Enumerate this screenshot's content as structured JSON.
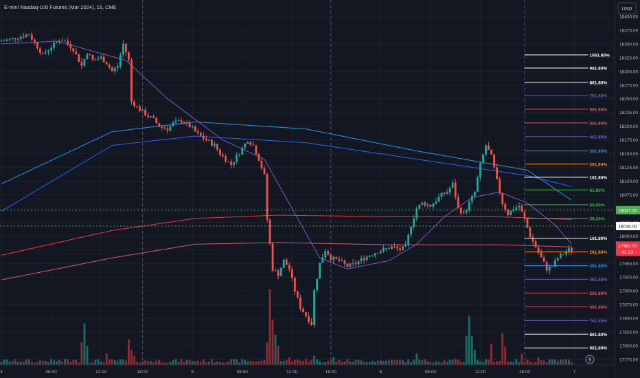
{
  "header": {
    "title": "E-mini Nasdaq-100 Futures (Mar 2024), 15, CME",
    "currency_button": "USD",
    "bolt_icon": "lightning-icon"
  },
  "chart_data": {
    "type": "candlestick",
    "title": "E-mini Nasdaq-100 Futures (Mar 2024), 15, CME",
    "yrange": [
      17765,
      18430
    ],
    "y_ticks": [
      18400,
      18375,
      18350,
      18325,
      18300,
      18275,
      18250,
      18225,
      18200,
      18175,
      18150,
      18125,
      18100,
      18075,
      18050,
      18025,
      18000,
      17975,
      17950,
      17925,
      17900,
      17875,
      17850,
      17825,
      17800,
      17775
    ],
    "y_tick_labels": [
      "18400.00",
      "18375.00",
      "18350.00",
      "18325.00",
      "18300.00",
      "18275.00",
      "18250.00",
      "18225.00",
      "18200.00",
      "18175.00",
      "18150.00",
      "18125.00",
      "18100.00",
      "18075.00",
      "18050.00",
      "18025.00",
      "18000.00",
      "17975.00",
      "17950.00",
      "17925.00",
      "17900.00",
      "17875.00",
      "17850.00",
      "17825.00",
      "17800.00",
      "17775.00"
    ],
    "xrange": [
      0,
      222
    ],
    "x_ticks": [
      {
        "x": 0,
        "label": "4"
      },
      {
        "x": 18,
        "label": "06:00"
      },
      {
        "x": 36,
        "label": "12:00"
      },
      {
        "x": 51,
        "label": "18:00"
      },
      {
        "x": 69,
        "label": "5"
      },
      {
        "x": 87,
        "label": "06:00"
      },
      {
        "x": 105,
        "label": "12:00"
      },
      {
        "x": 119,
        "label": "18:00"
      },
      {
        "x": 137,
        "label": "6"
      },
      {
        "x": 155,
        "label": "06:00"
      },
      {
        "x": 173,
        "label": "12:00"
      },
      {
        "x": 189,
        "label": "18:00"
      },
      {
        "x": 207,
        "label": "7"
      }
    ],
    "session_breaks": [
      51,
      119,
      189
    ],
    "price_anchors": [
      [
        0,
        18355
      ],
      [
        3,
        18357
      ],
      [
        7,
        18362
      ],
      [
        11,
        18368
      ],
      [
        13,
        18352
      ],
      [
        16,
        18330
      ],
      [
        19,
        18345
      ],
      [
        22,
        18358
      ],
      [
        24,
        18355
      ],
      [
        27,
        18340
      ],
      [
        30,
        18310
      ],
      [
        32,
        18335
      ],
      [
        34,
        18320
      ],
      [
        37,
        18325
      ],
      [
        39,
        18315
      ],
      [
        41,
        18300
      ],
      [
        43,
        18310
      ],
      [
        45,
        18350
      ],
      [
        47,
        18320
      ],
      [
        48,
        18245
      ],
      [
        50,
        18235
      ],
      [
        53,
        18222
      ],
      [
        56,
        18212
      ],
      [
        58,
        18200
      ],
      [
        61,
        18195
      ],
      [
        63,
        18205
      ],
      [
        66,
        18210
      ],
      [
        69,
        18200
      ],
      [
        72,
        18185
      ],
      [
        75,
        18175
      ],
      [
        78,
        18165
      ],
      [
        80,
        18150
      ],
      [
        82,
        18140
      ],
      [
        84,
        18130
      ],
      [
        86,
        18145
      ],
      [
        88,
        18160
      ],
      [
        90,
        18175
      ],
      [
        92,
        18165
      ],
      [
        94,
        18140
      ],
      [
        96,
        18110
      ],
      [
        97,
        18030
      ],
      [
        99,
        17940
      ],
      [
        101,
        17930
      ],
      [
        103,
        17955
      ],
      [
        105,
        17940
      ],
      [
        107,
        17900
      ],
      [
        109,
        17870
      ],
      [
        111,
        17855
      ],
      [
        113,
        17840
      ],
      [
        114,
        17900
      ],
      [
        116,
        17950
      ],
      [
        118,
        17975
      ],
      [
        120,
        17960
      ],
      [
        123,
        17955
      ],
      [
        126,
        17945
      ],
      [
        129,
        17950
      ],
      [
        132,
        17960
      ],
      [
        134,
        17965
      ],
      [
        136,
        17970
      ],
      [
        139,
        17975
      ],
      [
        142,
        17980
      ],
      [
        145,
        17975
      ],
      [
        147,
        17980
      ],
      [
        149,
        18020
      ],
      [
        151,
        18050
      ],
      [
        153,
        18060
      ],
      [
        156,
        18055
      ],
      [
        158,
        18065
      ],
      [
        160,
        18075
      ],
      [
        162,
        18080
      ],
      [
        164,
        18095
      ],
      [
        166,
        18050
      ],
      [
        168,
        18040
      ],
      [
        170,
        18060
      ],
      [
        172,
        18080
      ],
      [
        174,
        18130
      ],
      [
        176,
        18165
      ],
      [
        178,
        18145
      ],
      [
        180,
        18100
      ],
      [
        182,
        18060
      ],
      [
        184,
        18040
      ],
      [
        186,
        18050
      ],
      [
        188,
        18055
      ],
      [
        190,
        18030
      ],
      [
        192,
        18000
      ],
      [
        194,
        17980
      ],
      [
        196,
        17960
      ],
      [
        198,
        17940
      ],
      [
        200,
        17945
      ],
      [
        202,
        17960
      ],
      [
        204,
        17968
      ],
      [
        206,
        17975
      ]
    ],
    "last_bar_index": 206,
    "volume_spikes": [
      [
        0,
        4
      ],
      [
        12,
        3
      ],
      [
        24,
        8
      ],
      [
        29,
        30
      ],
      [
        30,
        55
      ],
      [
        31,
        25
      ],
      [
        38,
        15
      ],
      [
        46,
        34
      ],
      [
        47,
        20
      ],
      [
        48,
        12
      ],
      [
        52,
        6
      ],
      [
        70,
        5
      ],
      [
        96,
        30
      ],
      [
        97,
        100
      ],
      [
        98,
        60
      ],
      [
        99,
        40
      ],
      [
        100,
        25
      ],
      [
        104,
        10
      ],
      [
        110,
        8
      ],
      [
        113,
        12
      ],
      [
        115,
        5
      ],
      [
        120,
        10
      ],
      [
        140,
        6
      ],
      [
        150,
        15
      ],
      [
        168,
        38
      ],
      [
        169,
        65
      ],
      [
        170,
        38
      ],
      [
        171,
        20
      ],
      [
        177,
        28
      ],
      [
        181,
        42
      ],
      [
        182,
        24
      ],
      [
        188,
        15
      ],
      [
        194,
        10
      ],
      [
        206,
        4
      ]
    ],
    "volume_max": 100,
    "moving_averages": [
      {
        "color": "#2962ff",
        "anchors": [
          [
            0,
            18045
          ],
          [
            40,
            18165
          ],
          [
            70,
            18182
          ],
          [
            110,
            18170
          ],
          [
            150,
            18140
          ],
          [
            190,
            18110
          ],
          [
            206,
            18090
          ]
        ]
      },
      {
        "color": "#2196f3",
        "anchors": [
          [
            0,
            18095
          ],
          [
            40,
            18190
          ],
          [
            70,
            18208
          ],
          [
            110,
            18195
          ],
          [
            150,
            18155
          ],
          [
            190,
            18120
          ],
          [
            206,
            18065
          ]
        ]
      },
      {
        "color": "#f23645",
        "anchors": [
          [
            0,
            17965
          ],
          [
            40,
            18010
          ],
          [
            70,
            18032
          ],
          [
            100,
            18038
          ],
          [
            140,
            18035
          ],
          [
            180,
            18035
          ],
          [
            206,
            18030
          ]
        ]
      },
      {
        "color": "#e05660",
        "anchors": [
          [
            0,
            17920
          ],
          [
            40,
            17960
          ],
          [
            70,
            17985
          ],
          [
            100,
            17988
          ],
          [
            140,
            17984
          ],
          [
            180,
            17984
          ],
          [
            206,
            17980
          ]
        ]
      },
      {
        "color": "#7e57c2",
        "anchors": [
          [
            0,
            18350
          ],
          [
            20,
            18355
          ],
          [
            45,
            18320
          ],
          [
            60,
            18250
          ],
          [
            80,
            18175
          ],
          [
            95,
            18140
          ],
          [
            105,
            18050
          ],
          [
            115,
            17960
          ],
          [
            125,
            17940
          ],
          [
            140,
            17955
          ],
          [
            150,
            17985
          ],
          [
            160,
            18035
          ],
          [
            170,
            18070
          ],
          [
            180,
            18080
          ],
          [
            190,
            18060
          ],
          [
            200,
            18020
          ],
          [
            206,
            17985
          ]
        ]
      }
    ],
    "fib_levels": [
      {
        "label": "1061.80%",
        "price": 18330,
        "color": "#ffffff"
      },
      {
        "label": "961.80%",
        "price": 18306,
        "color": "#ffffff"
      },
      {
        "label": "861.80%",
        "price": 18280,
        "color": "#ffffff"
      },
      {
        "label": "761.80%",
        "price": 18256,
        "color": "#5b5fc7"
      },
      {
        "label": "661.80%",
        "price": 18231,
        "color": "#e05660"
      },
      {
        "label": "561.80%",
        "price": 18206,
        "color": "#e05660"
      },
      {
        "label": "461.80%",
        "price": 18181,
        "color": "#7e57c2"
      },
      {
        "label": "361.80%",
        "price": 18155,
        "color": "#2196f3"
      },
      {
        "label": "261.80%",
        "price": 18131,
        "color": "#ff9800"
      },
      {
        "label": "161.80%",
        "price": 18107,
        "color": "#ffffff"
      },
      {
        "label": "61.80%",
        "price": 18084,
        "color": "#4caf50"
      },
      {
        "label": "50.00%",
        "price": 18057,
        "color": "#4caf50"
      },
      {
        "label": "38.20%",
        "price": 18032,
        "color": "#4caf50"
      },
      {
        "label": "161.80%",
        "price": 17996,
        "color": "#ffffff"
      },
      {
        "label": "261.80%",
        "price": 17971,
        "color": "#ff9800"
      },
      {
        "label": "361.80%",
        "price": 17946,
        "color": "#2196f3"
      },
      {
        "label": "461.80%",
        "price": 17921,
        "color": "#7e57c2"
      },
      {
        "label": "561.80%",
        "price": 17896,
        "color": "#e05660"
      },
      {
        "label": "661.80%",
        "price": 17871,
        "color": "#e05660"
      },
      {
        "label": "761.80%",
        "price": 17846,
        "color": "#5b5fc7"
      },
      {
        "label": "861.80%",
        "price": 17821,
        "color": "#ffffff"
      },
      {
        "label": "961.80%",
        "price": 17796,
        "color": "#ffffff"
      }
    ],
    "fib_start_x": 189,
    "fib_label_x": 207,
    "price_tags": [
      {
        "label": "18047.00",
        "price": 18047,
        "color": "#4caf50"
      },
      {
        "label": "18018.00",
        "price": 18018,
        "color": "#ffffff"
      },
      {
        "label": "17982.50",
        "price": 17982.5,
        "color": "#f23645"
      },
      {
        "label": "01:23",
        "price": 17971,
        "color": "#f23645"
      }
    ],
    "dotted_lines": [
      {
        "price": 18047,
        "color": "#4caf50"
      },
      {
        "price": 18018,
        "color": "#4caf50"
      }
    ],
    "colors": {
      "up": "#26a69a",
      "down": "#ef5350",
      "vol_up": "#1e6b66",
      "vol_down": "#8c2f35",
      "grid": "#1e2230",
      "text": "#b2b5be"
    }
  }
}
